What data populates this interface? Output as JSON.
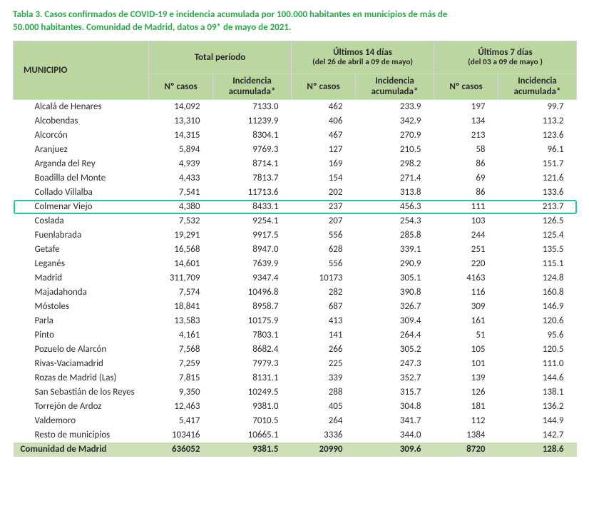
{
  "title_color": "#2aa84a",
  "header_bg": "#bcd6a2",
  "total_bg": "#cedfba",
  "highlight_border": "#1fc6a6",
  "title_lines": [
    "Tabla 3. Casos confirmados de COVID-19 e incidencia acumulada por 100.000 habitantes en municipios de más de",
    "50.000 habitantes. Comunidad de Madrid, datos a 09* de mayo de 2021."
  ],
  "columns": {
    "muni": "MUNICIPIO",
    "groups": [
      {
        "label": "Total período",
        "sub": ""
      },
      {
        "label": "Últimos 14 días",
        "sub": "(del 26 de abril a 09 de mayo)"
      },
      {
        "label": "Últimos 7 días",
        "sub": "(del 03 a 09 de mayo )"
      }
    ],
    "subcols": [
      "Nº casos",
      "Incidencia acumulada*"
    ]
  },
  "highlight_row_index": 7,
  "rows": [
    {
      "name": "Alcalá de Henares",
      "v": [
        "14,092",
        "7133.0",
        "462",
        "233.9",
        "197",
        "99.7"
      ]
    },
    {
      "name": "Alcobendas",
      "v": [
        "13,310",
        "11239.9",
        "406",
        "342.9",
        "134",
        "113.2"
      ]
    },
    {
      "name": "Alcorcón",
      "v": [
        "14,315",
        "8304.1",
        "467",
        "270.9",
        "213",
        "123.6"
      ]
    },
    {
      "name": "Aranjuez",
      "v": [
        "5,894",
        "9769.3",
        "127",
        "210.5",
        "58",
        "96.1"
      ]
    },
    {
      "name": "Arganda del Rey",
      "v": [
        "4,939",
        "8714.1",
        "169",
        "298.2",
        "86",
        "151.7"
      ]
    },
    {
      "name": "Boadilla del Monte",
      "v": [
        "4,433",
        "7813.7",
        "154",
        "271.4",
        "69",
        "121.6"
      ]
    },
    {
      "name": "Collado Villalba",
      "v": [
        "7,541",
        "11713.6",
        "202",
        "313.8",
        "86",
        "133.6"
      ]
    },
    {
      "name": "Colmenar Viejo",
      "v": [
        "4,380",
        "8433.1",
        "237",
        "456.3",
        "111",
        "213.7"
      ]
    },
    {
      "name": "Coslada",
      "v": [
        "7,532",
        "9254.1",
        "207",
        "254.3",
        "103",
        "126.5"
      ]
    },
    {
      "name": "Fuenlabrada",
      "v": [
        "19,291",
        "9917.5",
        "556",
        "285.8",
        "244",
        "125.4"
      ]
    },
    {
      "name": "Getafe",
      "v": [
        "16,568",
        "8947.0",
        "628",
        "339.1",
        "251",
        "135.5"
      ]
    },
    {
      "name": "Leganés",
      "v": [
        "14,601",
        "7639.9",
        "556",
        "290.9",
        "220",
        "115.1"
      ]
    },
    {
      "name": "Madrid",
      "v": [
        "311,709",
        "9347.4",
        "10173",
        "305.1",
        "4163",
        "124.8"
      ]
    },
    {
      "name": "Majadahonda",
      "v": [
        "7,574",
        "10496.8",
        "282",
        "390.8",
        "116",
        "160.8"
      ]
    },
    {
      "name": "Móstoles",
      "v": [
        "18,841",
        "8958.7",
        "687",
        "326.7",
        "309",
        "146.9"
      ]
    },
    {
      "name": "Parla",
      "v": [
        "13,583",
        "10175.9",
        "413",
        "309.4",
        "161",
        "120.6"
      ]
    },
    {
      "name": "Pinto",
      "v": [
        "4,161",
        "7803.1",
        "141",
        "264.4",
        "51",
        "95.6"
      ]
    },
    {
      "name": "Pozuelo de Alarcón",
      "v": [
        "7,568",
        "8682.4",
        "266",
        "305.2",
        "105",
        "120.5"
      ]
    },
    {
      "name": "Rivas-Vaciamadrid",
      "v": [
        "7,259",
        "7979.3",
        "225",
        "247.3",
        "101",
        "111.0"
      ]
    },
    {
      "name": "Rozas de Madrid (Las)",
      "v": [
        "7,815",
        "8131.1",
        "339",
        "352.7",
        "139",
        "144.6"
      ]
    },
    {
      "name": "San Sebastián de los Reyes",
      "v": [
        "9,350",
        "10249.5",
        "288",
        "315.7",
        "126",
        "138.1"
      ]
    },
    {
      "name": "Torrejón de Ardoz",
      "v": [
        "12,463",
        "9381.0",
        "405",
        "304.8",
        "181",
        "136.2"
      ]
    },
    {
      "name": "Valdemoro",
      "v": [
        "5,417",
        "7010.5",
        "264",
        "341.7",
        "112",
        "144.9"
      ]
    },
    {
      "name": "Resto de municipios",
      "v": [
        "103416",
        "10665.1",
        "3336",
        "344.0",
        "1384",
        "142.7"
      ]
    }
  ],
  "total_row": {
    "name": "Comunidad de Madrid",
    "v": [
      "636052",
      "9381.5",
      "20990",
      "309.6",
      "8720",
      "128.6"
    ]
  }
}
